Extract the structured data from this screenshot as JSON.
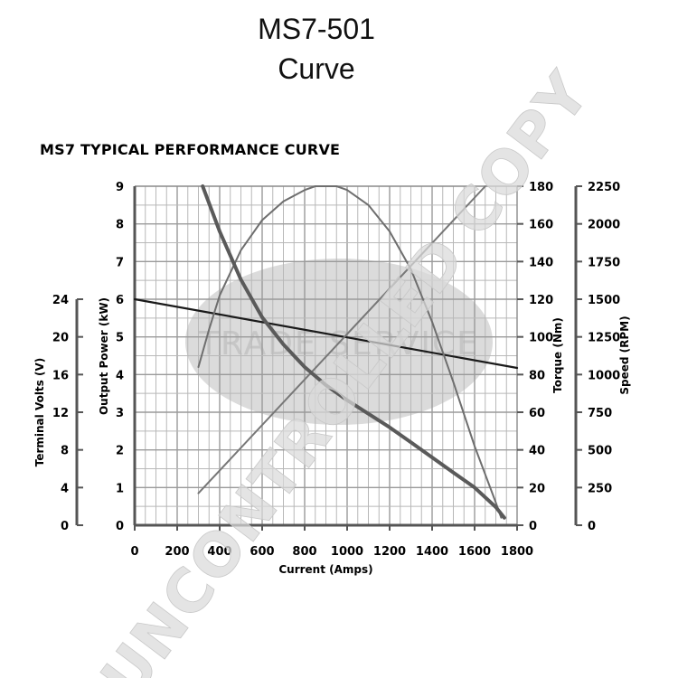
{
  "header": {
    "title_line1": "MS7-501",
    "title_line2": "Curve"
  },
  "chart_data": {
    "type": "line",
    "title": "MS7 TYPICAL PERFORMANCE CURVE",
    "watermarks": [
      "TRADE SERVICE",
      "UNCONTROLLED COPY"
    ],
    "xlabel": "Current (Amps)",
    "xlim": [
      0,
      1800
    ],
    "xticks": [
      0,
      200,
      400,
      600,
      800,
      1000,
      1200,
      1400,
      1600,
      1800
    ],
    "axes": {
      "volts": {
        "label": "Terminal Volts (V)",
        "ylim": [
          0,
          24
        ],
        "ticks": [
          0,
          4,
          8,
          12,
          16,
          20,
          24
        ]
      },
      "power": {
        "label": "Output Power (kW)",
        "ylim": [
          0,
          9
        ],
        "ticks": [
          0,
          1,
          2,
          3,
          4,
          5,
          6,
          7,
          8,
          9
        ]
      },
      "torque": {
        "label": "Torque (Nm)",
        "ylim": [
          0,
          180
        ],
        "ticks": [
          0,
          20,
          40,
          60,
          80,
          100,
          120,
          140,
          160,
          180
        ]
      },
      "speed": {
        "label": "Speed (RPM)",
        "ylim": [
          0,
          2250
        ],
        "ticks": [
          0,
          250,
          500,
          750,
          1000,
          1250,
          1500,
          1750,
          2000,
          2250
        ]
      }
    },
    "series": [
      {
        "axis": "volts",
        "color": "#1a1a1a",
        "width": 2.2,
        "x": [
          0,
          1800
        ],
        "y": [
          24,
          16.7
        ]
      },
      {
        "axis": "power",
        "color": "#6e6e6e",
        "width": 2,
        "x": [
          300,
          350,
          400,
          500,
          600,
          700,
          800,
          850,
          900,
          950,
          1000,
          1100,
          1200,
          1300,
          1400,
          1500,
          1600,
          1700,
          1725
        ],
        "y": [
          4.2,
          5.2,
          6.1,
          7.3,
          8.1,
          8.6,
          8.9,
          9.0,
          9.0,
          9.0,
          8.9,
          8.5,
          7.8,
          6.8,
          5.4,
          3.8,
          2.1,
          0.6,
          0.2
        ]
      },
      {
        "axis": "torque",
        "color": "#777777",
        "width": 2,
        "x": [
          300,
          1650
        ],
        "y": [
          17,
          180
        ]
      },
      {
        "axis": "speed",
        "color": "#5a5a5a",
        "width": 4,
        "x": [
          320,
          400,
          500,
          600,
          700,
          800,
          900,
          1000,
          1100,
          1200,
          1300,
          1400,
          1500,
          1600,
          1700,
          1740
        ],
        "y": [
          2250,
          1950,
          1630,
          1380,
          1200,
          1050,
          930,
          830,
          740,
          650,
          550,
          450,
          350,
          250,
          120,
          50
        ]
      }
    ]
  }
}
